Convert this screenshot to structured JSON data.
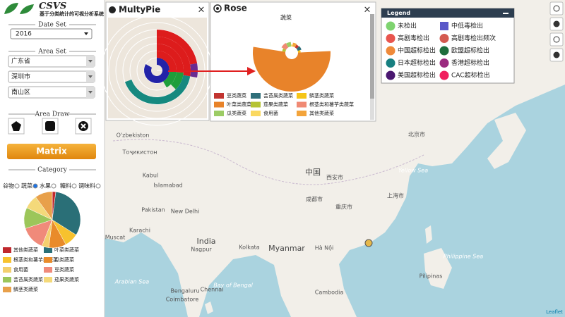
{
  "header": {
    "logo": "CSVS",
    "subtitle": "基于分类统计的可视分析系统"
  },
  "sidebar": {
    "date_set": {
      "label": "Date Set",
      "value": "2016"
    },
    "area_set": {
      "label": "Area Set",
      "province": "广东省",
      "city": "深圳市",
      "district": "南山区"
    },
    "area_draw": {
      "label": "Area Draw"
    },
    "matrix_button": "Matrix",
    "category": {
      "label": "Category",
      "options": [
        "谷物",
        "蔬菜",
        "水果",
        "糖料",
        "调味料"
      ],
      "selected": 1
    }
  },
  "panels": {
    "multypie": "MultyPie",
    "rose": "Rose"
  },
  "chart_data": [
    {
      "type": "pie",
      "categories": [
        "其他类蔬菜",
        "叶菜类蔬菜",
        "根茎类和薯芋类蔬菜",
        "瓜类蔬菜",
        "食用菌",
        "豆类蔬菜",
        "芸苔属类蔬菜",
        "茄果类蔬菜",
        "鳞茎类蔬菜"
      ],
      "values": [
        2,
        32,
        8,
        10,
        4,
        14,
        12,
        8,
        10
      ],
      "colors": [
        "#c0282d",
        "#2a6f77",
        "#f7c22e",
        "#e98b2a",
        "#f3cf6e",
        "#f08a7a",
        "#9cc65a",
        "#f4d97a",
        "#e8a04a"
      ]
    },
    {
      "type": "rose",
      "title": "蔬菜",
      "categories": [
        "豆类蔬菜",
        "芸苔属类蔬菜",
        "鳞茎类蔬菜",
        "叶菜类蔬菜",
        "茄果类蔬菜",
        "根茎类和薯芋类蔬菜",
        "瓜类蔬菜",
        "食用菌",
        "其他类蔬菜"
      ],
      "values": [
        5,
        6,
        4,
        50,
        5,
        8,
        7,
        3,
        6
      ],
      "colors": [
        "#c23531",
        "#2f6f7a",
        "#f5c518",
        "#e8832a",
        "#b5c334",
        "#f08a74",
        "#9ccc65",
        "#fad860",
        "#f3a43b"
      ]
    },
    {
      "type": "polar-bar",
      "series": [
        {
          "color": "#2323a8",
          "values": [
            300,
            0,
            0,
            0,
            0,
            0
          ]
        },
        {
          "color": "#dd1c1c",
          "values": [
            0,
            90,
            95,
            100,
            80,
            0
          ]
        },
        {
          "color": "#1f9e3a",
          "values": [
            0,
            60,
            40,
            0,
            0,
            0
          ]
        },
        {
          "color": "#16897f",
          "values": [
            0,
            0,
            0,
            150,
            0,
            0
          ]
        },
        {
          "color": "#6a2c91",
          "values": [
            0,
            0,
            0,
            0,
            20,
            0
          ]
        }
      ]
    }
  ],
  "legend": {
    "title": "Legend",
    "items": [
      {
        "label": "未检出",
        "color": "#7ed36f",
        "shape": "circle"
      },
      {
        "label": "中低毒检出",
        "color": "#5a58c8",
        "shape": "square"
      },
      {
        "label": "高剧毒检出",
        "color": "#e8554e",
        "shape": "circle"
      },
      {
        "label": "高剧毒检出频次",
        "color": "#d45a50",
        "shape": "circle"
      },
      {
        "label": "中国超标检出",
        "color": "#ef8a3a",
        "shape": "circle"
      },
      {
        "label": "欧盟超标检出",
        "color": "#1f6d3d",
        "shape": "circle"
      },
      {
        "label": "日本超标检出",
        "color": "#177f80",
        "shape": "circle"
      },
      {
        "label": "香港超标检出",
        "color": "#9b2a7f",
        "shape": "circle"
      },
      {
        "label": "美国超标检出",
        "color": "#4a1770",
        "shape": "circle"
      },
      {
        "label": "CAC超标检出",
        "color": "#f01f5e",
        "shape": "circle"
      }
    ]
  },
  "map": {
    "labels": [
      "O'zbekiston",
      "Тоҷикистон",
      "Kabul",
      "Islamabad",
      "Pakistan",
      "New Delhi",
      "Karachi",
      "Muscat",
      "India",
      "Nagpur",
      "Kolkata",
      "Myanmar",
      "Bengaluru",
      "Chennai",
      "Coimbatore",
      "Hà Nội",
      "Cambodia",
      "中国",
      "成都市",
      "重庆市",
      "西安市",
      "北京市",
      "上海市",
      "Pilipinas",
      "Arabian Sea",
      "Bay of Bengal",
      "Yellow Sea",
      "Philippine Sea"
    ],
    "attribution": "Leaflet"
  }
}
